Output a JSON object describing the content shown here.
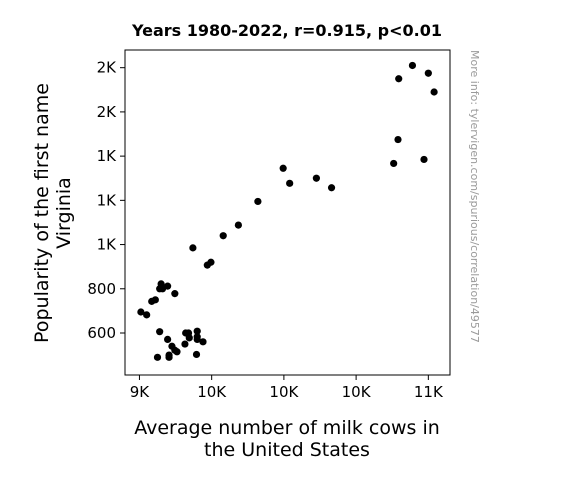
{
  "chart_data": {
    "type": "scatter",
    "title": "Years 1980-2022, r=0.915, p<0.01",
    "xlabel": [
      "Average number of milk cows in",
      "the United States"
    ],
    "ylabel": [
      "Popularity of the first name",
      "Virginia"
    ],
    "xlim": [
      8900,
      11150
    ],
    "ylim": [
      410,
      1880
    ],
    "xticks": [
      {
        "value": 9000,
        "label": "9K"
      },
      {
        "value": 9500,
        "label": "10K"
      },
      {
        "value": 10000,
        "label": "10K"
      },
      {
        "value": 10500,
        "label": "10K"
      },
      {
        "value": 11000,
        "label": "11K"
      }
    ],
    "yticks": [
      {
        "value": 600,
        "label": "600"
      },
      {
        "value": 800,
        "label": "800"
      },
      {
        "value": 1000,
        "label": "1K"
      },
      {
        "value": 1200,
        "label": "1K"
      },
      {
        "value": 1400,
        "label": "1K"
      },
      {
        "value": 1600,
        "label": "2K"
      },
      {
        "value": 1800,
        "label": "2K"
      }
    ],
    "marker_color": "#000000",
    "grid": false,
    "points": [
      {
        "x": 9010,
        "y": 695
      },
      {
        "x": 9050,
        "y": 682
      },
      {
        "x": 9085,
        "y": 743
      },
      {
        "x": 9110,
        "y": 750
      },
      {
        "x": 9140,
        "y": 800
      },
      {
        "x": 9150,
        "y": 822
      },
      {
        "x": 9160,
        "y": 800
      },
      {
        "x": 9195,
        "y": 812
      },
      {
        "x": 9245,
        "y": 778
      },
      {
        "x": 9140,
        "y": 606
      },
      {
        "x": 9195,
        "y": 571
      },
      {
        "x": 9225,
        "y": 540
      },
      {
        "x": 9245,
        "y": 522
      },
      {
        "x": 9260,
        "y": 515
      },
      {
        "x": 9205,
        "y": 500
      },
      {
        "x": 9205,
        "y": 490
      },
      {
        "x": 9125,
        "y": 490
      },
      {
        "x": 9320,
        "y": 600
      },
      {
        "x": 9340,
        "y": 600
      },
      {
        "x": 9345,
        "y": 578
      },
      {
        "x": 9315,
        "y": 550
      },
      {
        "x": 9400,
        "y": 608
      },
      {
        "x": 9400,
        "y": 583
      },
      {
        "x": 9400,
        "y": 571
      },
      {
        "x": 9440,
        "y": 560
      },
      {
        "x": 9395,
        "y": 503
      },
      {
        "x": 9370,
        "y": 985
      },
      {
        "x": 9470,
        "y": 907
      },
      {
        "x": 9495,
        "y": 920
      },
      {
        "x": 9580,
        "y": 1040
      },
      {
        "x": 9685,
        "y": 1088
      },
      {
        "x": 9820,
        "y": 1195
      },
      {
        "x": 9995,
        "y": 1345
      },
      {
        "x": 10040,
        "y": 1277
      },
      {
        "x": 10225,
        "y": 1300
      },
      {
        "x": 10330,
        "y": 1257
      },
      {
        "x": 10760,
        "y": 1367
      },
      {
        "x": 10790,
        "y": 1475
      },
      {
        "x": 10970,
        "y": 1385
      },
      {
        "x": 10795,
        "y": 1750
      },
      {
        "x": 10890,
        "y": 1810
      },
      {
        "x": 11000,
        "y": 1775
      },
      {
        "x": 11040,
        "y": 1690
      }
    ]
  },
  "watermark": "More info: tylervigen.com/spurious/correlation/49577"
}
